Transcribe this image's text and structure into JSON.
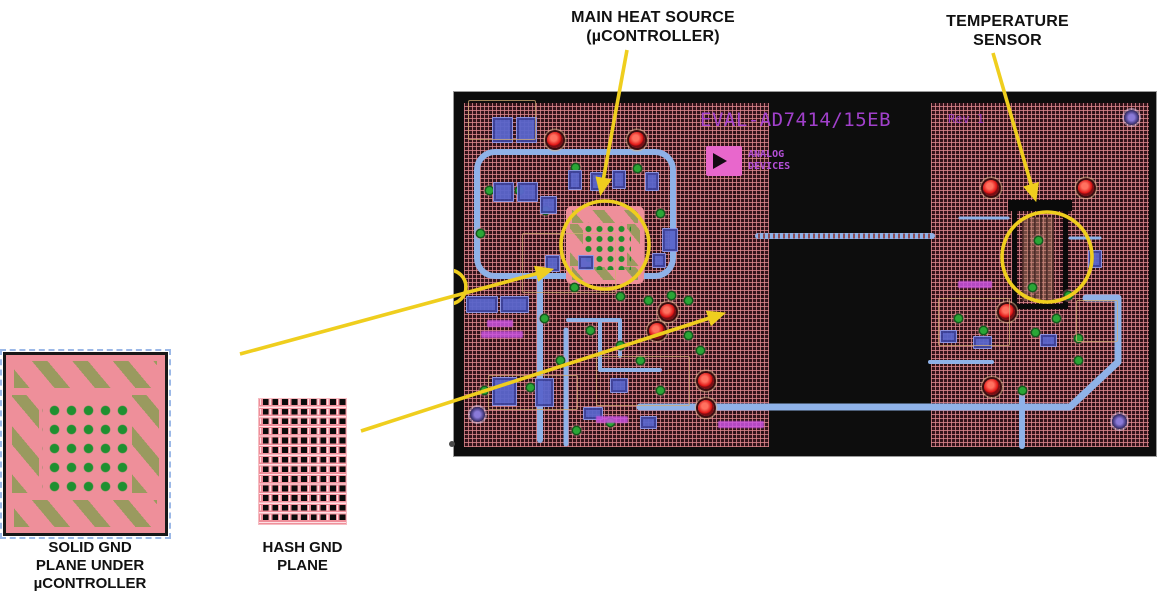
{
  "annotations": {
    "main_heat_source": {
      "lines": [
        "MAIN HEAT SOURCE",
        "(µCONTROLLER)"
      ]
    },
    "temperature_sensor": {
      "lines": [
        "TEMPERATURE",
        "SENSOR"
      ]
    },
    "solid_gnd_plane": {
      "lines": [
        "SOLID GND",
        "PLANE UNDER",
        "µCONTROLLER"
      ]
    },
    "hash_gnd_plane": {
      "lines": [
        "HASH GND",
        "PLANE"
      ]
    }
  },
  "pcb": {
    "silkscreen_title": "EVAL-AD7414/15EB",
    "logo_line1": "ANALOG",
    "logo_line2": "DEVICES",
    "rev_text": "Rev 1"
  },
  "colors": {
    "arrow_yellow": "#efce1e",
    "hatch_pink": "#de888e",
    "solid_plane_pink": "#ee8f9a",
    "via_green": "#2aa636",
    "pad_olive": "#9aa05c",
    "trace_blue": "#8fb2e8",
    "component_blue": "#5a66cc",
    "led_red": "#df1414",
    "silkscreen_purple": "#a943d6"
  }
}
